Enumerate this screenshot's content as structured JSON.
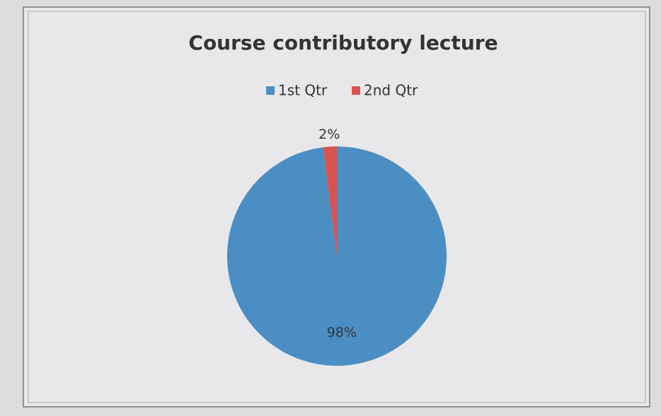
{
  "chart_data": {
    "type": "pie",
    "title": "Course contributory lecture",
    "categories": [
      "1st Qtr",
      "2nd Qtr"
    ],
    "values": [
      98,
      2
    ],
    "value_labels": [
      "98%",
      "2%"
    ],
    "colors": [
      "#4b8ec4",
      "#d9534f"
    ],
    "legend": "top"
  }
}
